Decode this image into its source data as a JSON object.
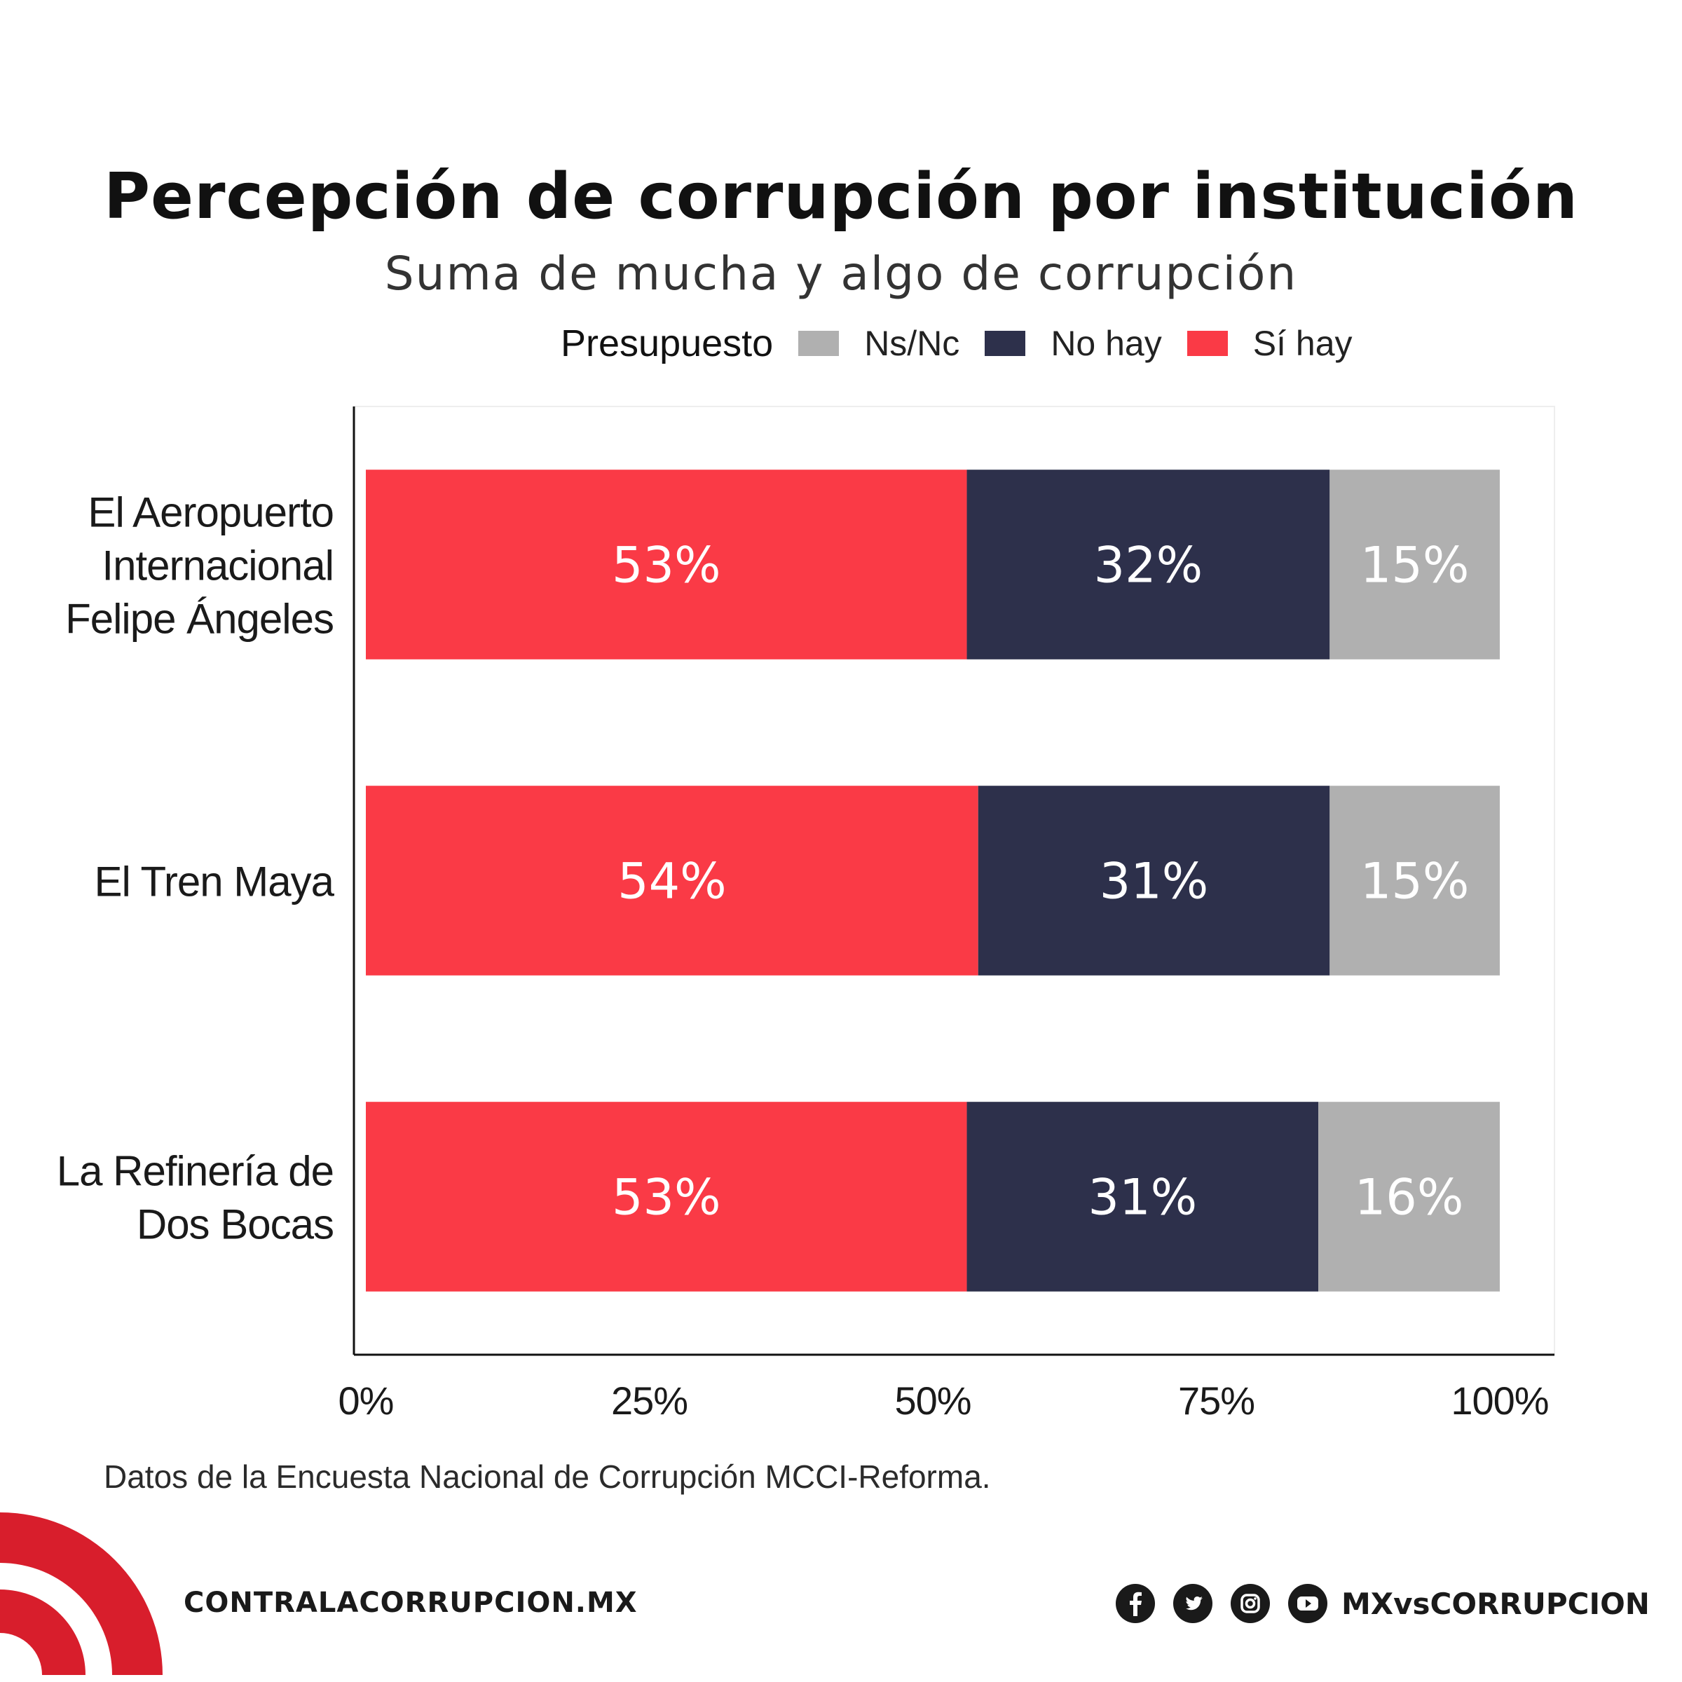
{
  "chart_data": {
    "type": "bar",
    "orientation": "horizontal",
    "stacked": true,
    "title": "Percepción de corrupción por institución",
    "subtitle": "Suma de mucha y algo de corrupción",
    "legend": {
      "title": "Presupuesto",
      "entries": [
        "Ns/Nc",
        "No hay",
        "Sí hay"
      ],
      "placement": "top"
    },
    "categories": [
      [
        "El Aeropuerto",
        "Internacional",
        "Felipe Ángeles"
      ],
      [
        "El Tren Maya"
      ],
      [
        "La Refinería de",
        "Dos Bocas"
      ]
    ],
    "series": [
      {
        "name": "Sí hay",
        "values": [
          53,
          54,
          53
        ],
        "labels": [
          "53%",
          "54%",
          "53%"
        ],
        "color": "#fa3a46"
      },
      {
        "name": "No hay",
        "values": [
          32,
          31,
          31
        ],
        "labels": [
          "32%",
          "31%",
          "31%"
        ],
        "color": "#2d304b"
      },
      {
        "name": "Ns/Nc",
        "values": [
          15,
          15,
          16
        ],
        "labels": [
          "15%",
          "15%",
          "16%"
        ],
        "color": "#b0b0b0"
      }
    ],
    "xticks": [
      "0%",
      "25%",
      "50%",
      "75%",
      "100%"
    ],
    "xlim": [
      0,
      100
    ],
    "grid": false
  },
  "footer": {
    "source": "Datos de la Encuesta Nacional de Corrupción MCCI-Reforma.",
    "website": "CONTRALACORRUPCION.MX",
    "handle": "MXvsCORRUPCION",
    "icons": [
      "facebook-icon",
      "twitter-icon",
      "instagram-icon",
      "youtube-icon"
    ]
  },
  "colors": {
    "brand_red": "#d81e2c",
    "text_dark": "#111111"
  }
}
